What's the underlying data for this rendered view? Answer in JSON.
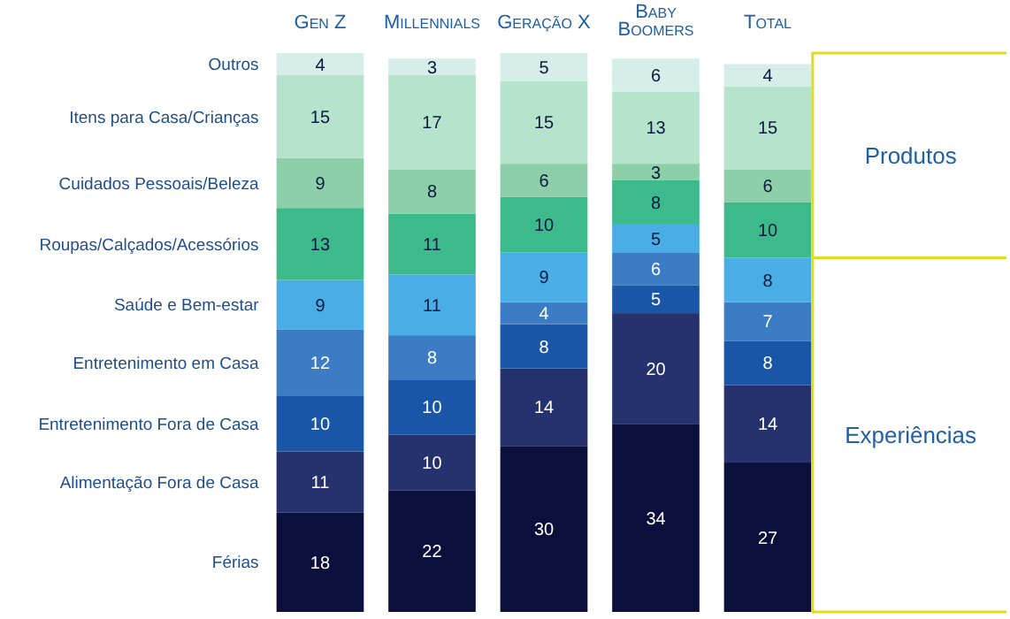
{
  "chart_data": {
    "type": "bar",
    "stacked": true,
    "data_labels": true,
    "categories": [
      "Gen Z",
      "Millennials",
      "Geração X",
      "Baby Boomers",
      "Total"
    ],
    "series": [
      {
        "name": "Férias",
        "color": "#0a0f3c",
        "values": [
          18,
          22,
          30,
          34,
          27
        ]
      },
      {
        "name": "Alimentação Fora de Casa",
        "color": "#26326e",
        "values": [
          11,
          10,
          14,
          20,
          14
        ]
      },
      {
        "name": "Entretenimento Fora de Casa",
        "color": "#1a56a8",
        "values": [
          10,
          10,
          8,
          5,
          8
        ]
      },
      {
        "name": "Entretenimento em Casa",
        "color": "#3b7cc4",
        "values": [
          12,
          8,
          4,
          6,
          7
        ]
      },
      {
        "name": "Saúde e Bem-estar",
        "color": "#4aaee6",
        "values": [
          9,
          11,
          9,
          5,
          8
        ]
      },
      {
        "name": "Roupas/Calçados/Acessórios",
        "color": "#3dba8c",
        "values": [
          13,
          11,
          10,
          8,
          10
        ]
      },
      {
        "name": "Cuidados Pessoais/Beleza",
        "color": "#8ccfa8",
        "values": [
          9,
          8,
          6,
          3,
          6
        ]
      },
      {
        "name": "Itens para Casa/Crianças",
        "color": "#b5e3cc",
        "values": [
          15,
          17,
          15,
          13,
          15
        ]
      },
      {
        "name": "Outros",
        "color": "#d5efe8",
        "values": [
          4,
          3,
          5,
          6,
          4
        ]
      }
    ],
    "annotations": [
      "Produtos",
      "Experiências"
    ]
  }
}
